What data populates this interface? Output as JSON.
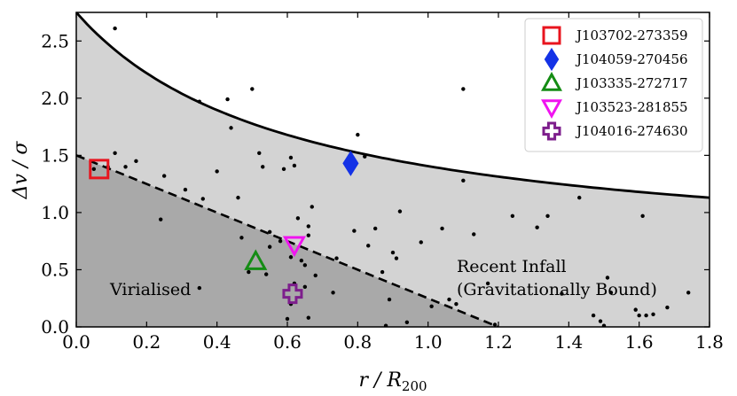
{
  "chart_data": {
    "type": "scatter",
    "xlabel": {
      "main": "r / R",
      "sub": "200"
    },
    "ylabel": {
      "main": "Δv / σ"
    },
    "xlim": [
      0.0,
      1.8
    ],
    "ylim": [
      0.0,
      2.75
    ],
    "xticks": [
      "0.0",
      "0.2",
      "0.4",
      "0.6",
      "0.8",
      "1.0",
      "1.2",
      "1.4",
      "1.6",
      "1.8"
    ],
    "yticks": [
      "0.0",
      "0.5",
      "1.0",
      "1.5",
      "2.0",
      "2.5"
    ],
    "regions": {
      "virialised_label": "Virialised",
      "infall_label_line1": "Recent Infall",
      "infall_label_line2": "(Gravitationally Bound)"
    },
    "escape_curve": {
      "description": "escape velocity caustic",
      "style": "solid",
      "y_at_0": 2.75,
      "y_at_1_8": 1.13
    },
    "virial_line": {
      "style": "dashed",
      "points": [
        [
          0.0,
          1.5
        ],
        [
          1.2,
          0.0
        ]
      ]
    },
    "background_points": [
      [
        0.11,
        2.61
      ],
      [
        0.05,
        1.38
      ],
      [
        0.09,
        1.4
      ],
      [
        0.11,
        1.52
      ],
      [
        0.14,
        1.4
      ],
      [
        0.17,
        1.45
      ],
      [
        0.25,
        1.32
      ],
      [
        0.24,
        0.94
      ],
      [
        0.31,
        1.2
      ],
      [
        0.35,
        1.97
      ],
      [
        0.43,
        1.99
      ],
      [
        0.44,
        1.74
      ],
      [
        0.4,
        1.36
      ],
      [
        0.36,
        1.12
      ],
      [
        0.35,
        0.34
      ],
      [
        0.46,
        1.13
      ],
      [
        0.5,
        2.08
      ],
      [
        0.52,
        1.52
      ],
      [
        0.53,
        1.4
      ],
      [
        0.59,
        1.38
      ],
      [
        0.61,
        1.48
      ],
      [
        0.62,
        1.41
      ],
      [
        0.47,
        0.78
      ],
      [
        0.49,
        0.48
      ],
      [
        0.55,
        0.7
      ],
      [
        0.54,
        0.46
      ],
      [
        0.55,
        0.83
      ],
      [
        0.58,
        0.75
      ],
      [
        0.61,
        0.61
      ],
      [
        0.63,
        0.95
      ],
      [
        0.64,
        0.58
      ],
      [
        0.65,
        0.54
      ],
      [
        0.66,
        0.88
      ],
      [
        0.67,
        1.05
      ],
      [
        0.66,
        0.8
      ],
      [
        0.62,
        0.38
      ],
      [
        0.6,
        0.07
      ],
      [
        0.66,
        0.08
      ],
      [
        0.61,
        0.2
      ],
      [
        0.65,
        0.35
      ],
      [
        0.68,
        0.45
      ],
      [
        0.73,
        0.3
      ],
      [
        0.74,
        0.6
      ],
      [
        0.79,
        0.84
      ],
      [
        0.8,
        1.68
      ],
      [
        0.82,
        1.49
      ],
      [
        0.83,
        0.71
      ],
      [
        0.85,
        0.86
      ],
      [
        0.87,
        0.48
      ],
      [
        0.89,
        0.24
      ],
      [
        0.9,
        0.65
      ],
      [
        0.91,
        0.6
      ],
      [
        0.92,
        1.01
      ],
      [
        0.94,
        0.04
      ],
      [
        0.88,
        0.01
      ],
      [
        0.98,
        0.74
      ],
      [
        1.01,
        0.18
      ],
      [
        1.04,
        0.86
      ],
      [
        1.06,
        0.24
      ],
      [
        1.08,
        0.2
      ],
      [
        1.1,
        2.08
      ],
      [
        1.1,
        1.28
      ],
      [
        1.13,
        0.81
      ],
      [
        1.17,
        0.38
      ],
      [
        1.19,
        0.02
      ],
      [
        1.24,
        0.97
      ],
      [
        1.31,
        0.87
      ],
      [
        1.34,
        0.97
      ],
      [
        1.38,
        0.29
      ],
      [
        1.43,
        1.13
      ],
      [
        1.47,
        0.1
      ],
      [
        1.49,
        0.05
      ],
      [
        1.51,
        0.43
      ],
      [
        1.5,
        0.01
      ],
      [
        1.52,
        0.3
      ],
      [
        1.59,
        0.15
      ],
      [
        1.6,
        0.1
      ],
      [
        1.61,
        0.97
      ],
      [
        1.62,
        0.1
      ],
      [
        1.64,
        0.11
      ],
      [
        1.68,
        0.17
      ],
      [
        1.74,
        0.3
      ]
    ],
    "legend_position": "top-right",
    "series": [
      {
        "name": "J103702-273359",
        "marker": "square",
        "color": "#e8141e",
        "x": 0.065,
        "y": 1.38
      },
      {
        "name": "J104059-270456",
        "marker": "diamond",
        "color": "#1432e6",
        "x": 0.78,
        "y": 1.43
      },
      {
        "name": "J103335-272717",
        "marker": "triangle-up",
        "color": "#148c14",
        "x": 0.51,
        "y": 0.57
      },
      {
        "name": "J103523-281855",
        "marker": "triangle-down",
        "color": "#f014f0",
        "x": 0.62,
        "y": 0.72
      },
      {
        "name": "J104016-274630",
        "marker": "plus",
        "color": "#7d1e8c",
        "x": 0.615,
        "y": 0.29
      }
    ]
  }
}
